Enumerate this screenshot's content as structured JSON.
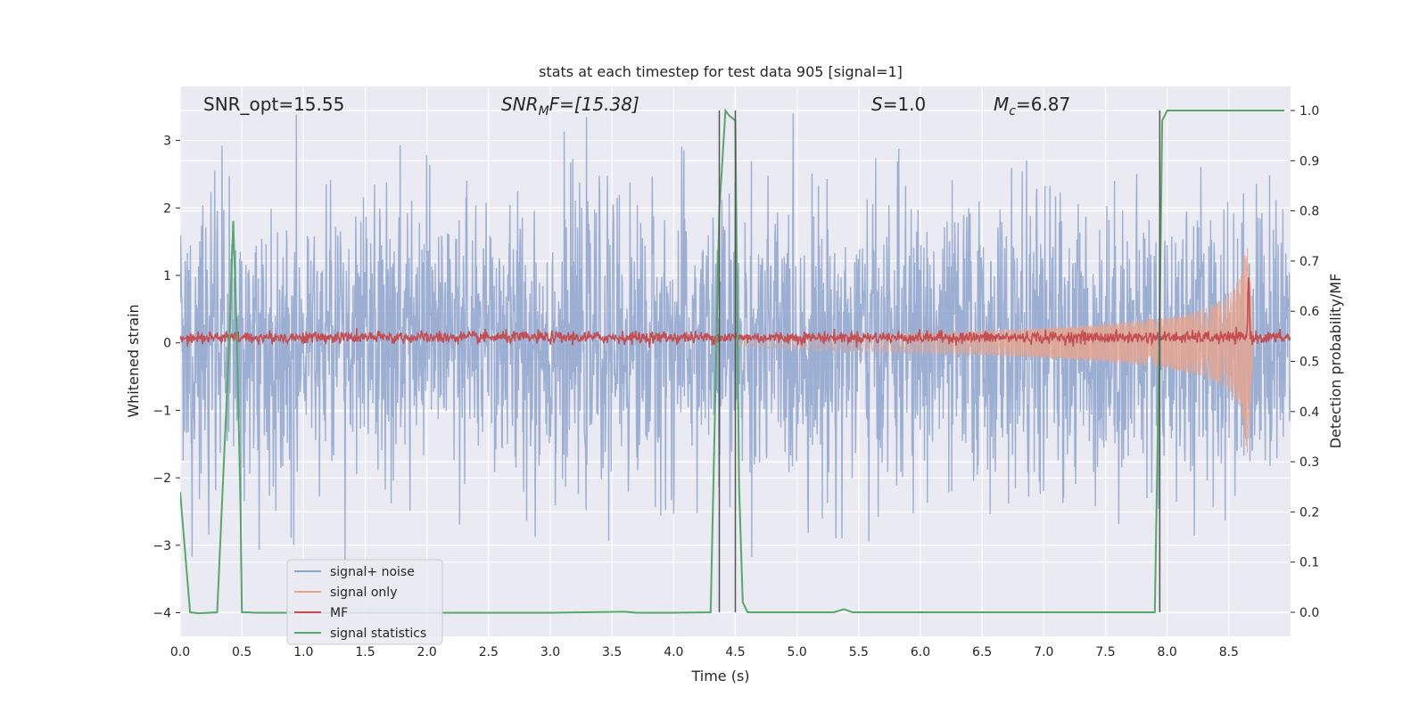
{
  "chart_data": {
    "type": "line",
    "title": "stats at each timestep for test data 905 [signal=1]",
    "xlabel": "Time (s)",
    "ylabel": "Whitened strain",
    "y2label": "Detection probability/MF",
    "xlim": [
      0.0,
      9.0
    ],
    "ylim": [
      -4.35,
      3.8
    ],
    "y2lim": [
      -0.048,
      1.048
    ],
    "xticks": [
      "0.0",
      "0.5",
      "1.0",
      "1.5",
      "2.0",
      "2.5",
      "3.0",
      "3.5",
      "4.0",
      "4.5",
      "5.0",
      "5.5",
      "6.0",
      "6.5",
      "7.0",
      "7.5",
      "8.0",
      "8.5"
    ],
    "xtick_values": [
      0.0,
      0.5,
      1.0,
      1.5,
      2.0,
      2.5,
      3.0,
      3.5,
      4.0,
      4.5,
      5.0,
      5.5,
      6.0,
      6.5,
      7.0,
      7.5,
      8.0,
      8.5
    ],
    "yticks": [
      "−4",
      "−3",
      "−2",
      "−1",
      "0",
      "1",
      "2",
      "3"
    ],
    "ytick_values": [
      -4,
      -3,
      -2,
      -1,
      0,
      1,
      2,
      3
    ],
    "y2ticks": [
      "0.0",
      "0.1",
      "0.2",
      "0.3",
      "0.4",
      "0.5",
      "0.6",
      "0.7",
      "0.8",
      "0.9",
      "1.0"
    ],
    "y2tick_values": [
      0.0,
      0.1,
      0.2,
      0.3,
      0.4,
      0.5,
      0.6,
      0.7,
      0.8,
      0.9,
      1.0
    ],
    "grid": true,
    "legend_position": "lower-left",
    "annotations": {
      "snr_opt": "SNR_opt=15.55",
      "snr_mf_prefix": "SNR",
      "snr_mf_sub": "M",
      "snr_mf_suffix": "F=[15.38]",
      "s_prefix": "S",
      "s_suffix": "=1.0",
      "mc_prefix": "M",
      "mc_sub": "c",
      "mc_suffix": "=6.87"
    },
    "vertical_lines_x": [
      4.37,
      4.5,
      7.94
    ],
    "series": [
      {
        "name": "signal+ noise",
        "color": "#8ea3cc",
        "axis": "left",
        "description_amplitude_range": [
          -4.0,
          3.4
        ]
      },
      {
        "name": "signal only",
        "color": "#e7a48c",
        "axis": "left",
        "envelope_x": [
          4.5,
          5.0,
          6.0,
          7.0,
          7.5,
          8.0,
          8.3,
          8.5,
          8.6,
          8.65,
          8.68,
          8.7
        ],
        "envelope_y": [
          0.05,
          0.1,
          0.15,
          0.22,
          0.28,
          0.38,
          0.5,
          0.7,
          1.0,
          1.65,
          0.8,
          0.0
        ]
      },
      {
        "name": "MF",
        "color": "#c44e52",
        "axis": "left",
        "baseline": 0.08,
        "peak_x": 8.66,
        "peak_y": 1.0
      },
      {
        "name": "signal statistics",
        "color": "#55a868",
        "axis": "right",
        "x": [
          0.0,
          0.08,
          0.15,
          0.3,
          0.4,
          0.43,
          0.46,
          0.49,
          0.5,
          0.55,
          0.6,
          1.0,
          2.0,
          3.0,
          3.6,
          3.7,
          4.0,
          4.3,
          4.37,
          4.42,
          4.45,
          4.5,
          4.53,
          4.56,
          4.6,
          4.7,
          5.0,
          5.3,
          5.38,
          5.45,
          6.0,
          7.0,
          7.9,
          7.94,
          7.96,
          8.0,
          8.5,
          8.95
        ],
        "y": [
          0.24,
          0.0,
          -0.002,
          0.0,
          0.55,
          0.78,
          0.55,
          0.2,
          0.0,
          0.0,
          -0.001,
          -0.001,
          -0.001,
          -0.001,
          0.001,
          -0.001,
          -0.001,
          0.0,
          0.8,
          1.0,
          0.99,
          0.98,
          0.25,
          0.02,
          0.0,
          0.0,
          0.0,
          0.0,
          0.006,
          0.0,
          0.0,
          0.0,
          0.0,
          0.6,
          0.98,
          1.0,
          1.0,
          1.0
        ]
      }
    ]
  }
}
